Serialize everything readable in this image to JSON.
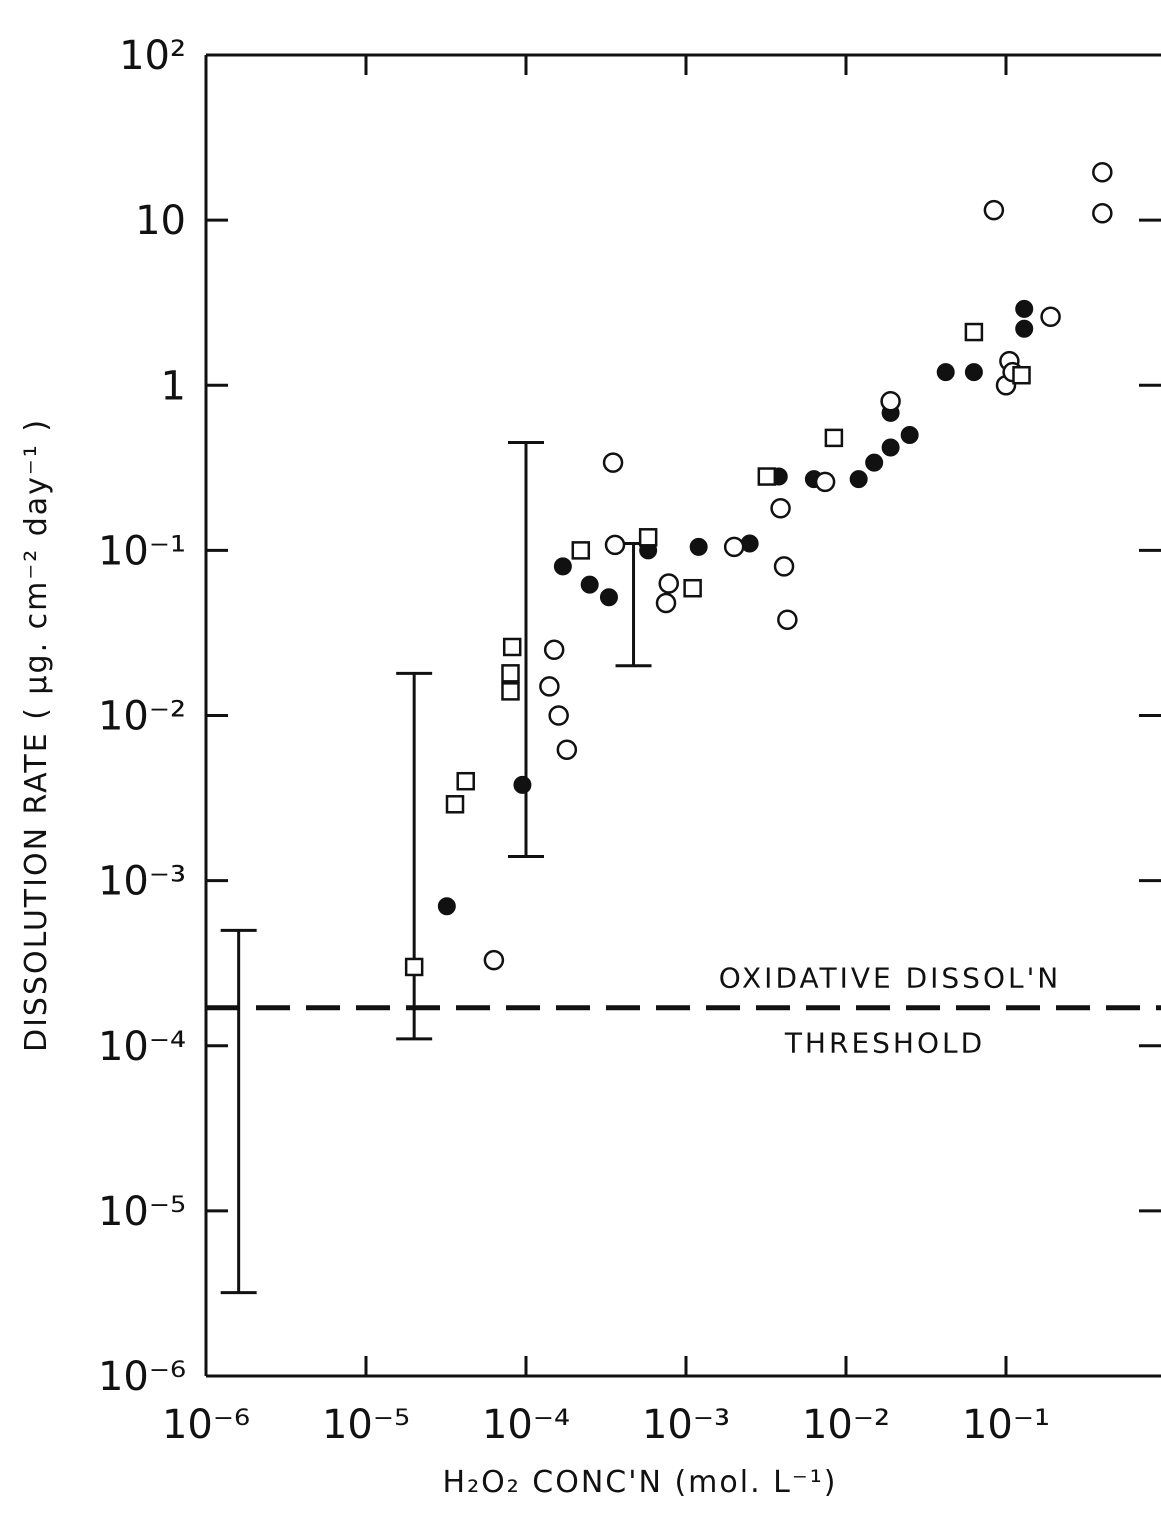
{
  "chart_data": {
    "type": "scatter",
    "title": "",
    "xlabel": "H₂O₂  CONC'N  (mol. L⁻¹)",
    "ylabel": "DISSOLUTION RATE ( µg. cm⁻² day⁻¹ )",
    "x_scale": "log",
    "y_scale": "log",
    "xlim": [
      1e-06,
      1
    ],
    "ylim": [
      1e-06,
      100
    ],
    "grid": false,
    "x_ticks": [
      {
        "value": 1e-06,
        "label": "10⁻⁶"
      },
      {
        "value": 1e-05,
        "label": "10⁻⁵"
      },
      {
        "value": 0.0001,
        "label": "10⁻⁴"
      },
      {
        "value": 0.001,
        "label": "10⁻³"
      },
      {
        "value": 0.01,
        "label": "10⁻²"
      },
      {
        "value": 0.1,
        "label": "10⁻¹"
      }
    ],
    "y_ticks": [
      {
        "value": 1e-06,
        "label": "10⁻⁶"
      },
      {
        "value": 1e-05,
        "label": "10⁻⁵"
      },
      {
        "value": 0.0001,
        "label": "10⁻⁴"
      },
      {
        "value": 0.001,
        "label": "10⁻³"
      },
      {
        "value": 0.01,
        "label": "10⁻²"
      },
      {
        "value": 0.1,
        "label": "10⁻¹"
      },
      {
        "value": 1,
        "label": "1"
      },
      {
        "value": 10,
        "label": "10"
      },
      {
        "value": 100,
        "label": "10²"
      }
    ],
    "threshold": {
      "y": 0.00017,
      "label_top": "OXIDATIVE DISSOL'N",
      "label_bottom": "THRESHOLD"
    },
    "error_bars": [
      {
        "x": 1.6e-06,
        "low": 3.2e-06,
        "high": 0.0005
      },
      {
        "x": 2e-05,
        "low": 0.00011,
        "high": 0.018
      },
      {
        "x": 0.0001,
        "low": 0.0014,
        "high": 0.45
      },
      {
        "x": 0.00047,
        "low": 0.02,
        "high": 0.11
      }
    ],
    "series": [
      {
        "marker": "filled-circle",
        "points": [
          [
            3.2e-05,
            0.0007
          ],
          [
            9.5e-05,
            0.0038
          ],
          [
            0.00017,
            0.08
          ],
          [
            0.00025,
            0.062
          ],
          [
            0.00033,
            0.052
          ],
          [
            0.00058,
            0.1
          ],
          [
            0.0012,
            0.105
          ],
          [
            0.0025,
            0.11
          ],
          [
            0.0038,
            0.28
          ],
          [
            0.0063,
            0.27
          ],
          [
            0.012,
            0.27
          ],
          [
            0.015,
            0.34
          ],
          [
            0.019,
            0.42
          ],
          [
            0.019,
            0.68
          ],
          [
            0.025,
            0.5
          ],
          [
            0.042,
            1.2
          ],
          [
            0.063,
            1.2
          ],
          [
            0.13,
            2.2
          ],
          [
            0.13,
            2.9
          ]
        ]
      },
      {
        "marker": "open-circle",
        "points": [
          [
            6.3e-05,
            0.00033
          ],
          [
            0.00014,
            0.015
          ],
          [
            0.00015,
            0.025
          ],
          [
            0.00016,
            0.01
          ],
          [
            0.00018,
            0.0062
          ],
          [
            0.00035,
            0.34
          ],
          [
            0.00036,
            0.108
          ],
          [
            0.00075,
            0.048
          ],
          [
            0.00078,
            0.063
          ],
          [
            0.002,
            0.105
          ],
          [
            0.0039,
            0.18
          ],
          [
            0.0041,
            0.08
          ],
          [
            0.0043,
            0.038
          ],
          [
            0.0074,
            0.26
          ],
          [
            0.019,
            0.8
          ],
          [
            0.084,
            11.5
          ],
          [
            0.1,
            1.0
          ],
          [
            0.105,
            1.4
          ],
          [
            0.11,
            1.2
          ],
          [
            0.19,
            2.6
          ],
          [
            0.4,
            11
          ],
          [
            0.4,
            19.5
          ]
        ]
      },
      {
        "marker": "open-square",
        "points": [
          [
            2e-05,
            0.0003
          ],
          [
            3.6e-05,
            0.0029
          ],
          [
            4.2e-05,
            0.004
          ],
          [
            8e-05,
            0.014
          ],
          [
            8e-05,
            0.018
          ],
          [
            8.2e-05,
            0.026
          ],
          [
            0.00022,
            0.1
          ],
          [
            0.00058,
            0.12
          ],
          [
            0.0011,
            0.059
          ],
          [
            0.0032,
            0.28
          ],
          [
            0.0084,
            0.48
          ],
          [
            0.063,
            2.1
          ],
          [
            0.125,
            1.15
          ]
        ]
      }
    ]
  }
}
